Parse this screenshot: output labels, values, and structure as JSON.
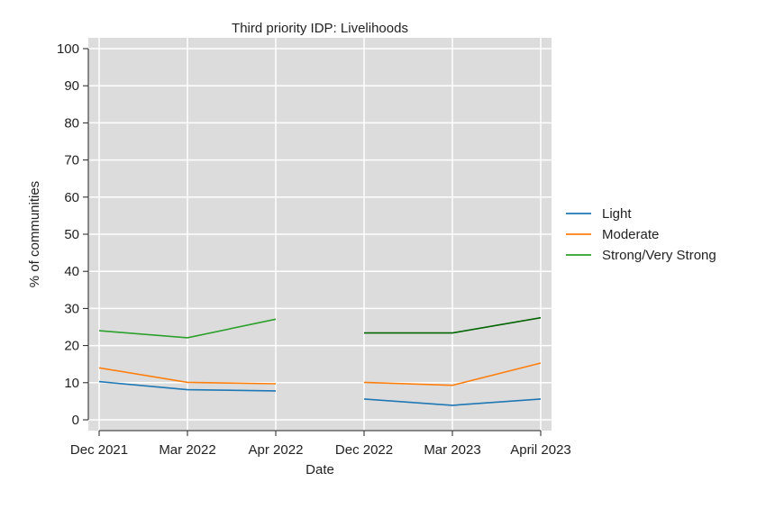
{
  "chart_data": {
    "type": "line",
    "title": "Third priority IDP: Livelihoods",
    "xlabel": "Date",
    "ylabel": "% of communities",
    "categories": [
      "Dec 2021",
      "Mar 2022",
      "Apr 2022",
      "Dec 2022",
      "Mar 2023",
      "April 2023"
    ],
    "ylim": [
      0,
      100
    ],
    "yticks": [
      0,
      10,
      20,
      30,
      40,
      50,
      60,
      70,
      80,
      90,
      100
    ],
    "grid": true,
    "legend_position": "right",
    "series": [
      {
        "name": "Light",
        "color": "#1f77b4",
        "segments": [
          {
            "x": [
              "Dec 2021",
              "Mar 2022",
              "Apr 2022"
            ],
            "values": [
              10.3,
              8.1,
              7.8
            ]
          },
          {
            "x": [
              "Dec 2022",
              "Mar 2023",
              "April 2023"
            ],
            "values": [
              5.6,
              3.9,
              5.6
            ]
          }
        ]
      },
      {
        "name": "Moderate",
        "color": "#ff7f0e",
        "segments": [
          {
            "x": [
              "Dec 2021",
              "Mar 2022",
              "Apr 2022"
            ],
            "values": [
              14.0,
              10.1,
              9.7
            ]
          },
          {
            "x": [
              "Dec 2022",
              "Mar 2023",
              "April 2023"
            ],
            "values": [
              10.1,
              9.3,
              15.3
            ]
          }
        ]
      },
      {
        "name": "Strong/Very Strong",
        "color": "#2ca02c",
        "segments": [
          {
            "x": [
              "Dec 2021",
              "Mar 2022",
              "Apr 2022"
            ],
            "values": [
              24.0,
              22.1,
              27.1
            ],
            "color": "#2ca02c"
          },
          {
            "x": [
              "Dec 2022",
              "Mar 2023",
              "April 2023"
            ],
            "values": [
              23.4,
              23.4,
              27.5
            ],
            "color": "#006400"
          }
        ]
      }
    ]
  }
}
